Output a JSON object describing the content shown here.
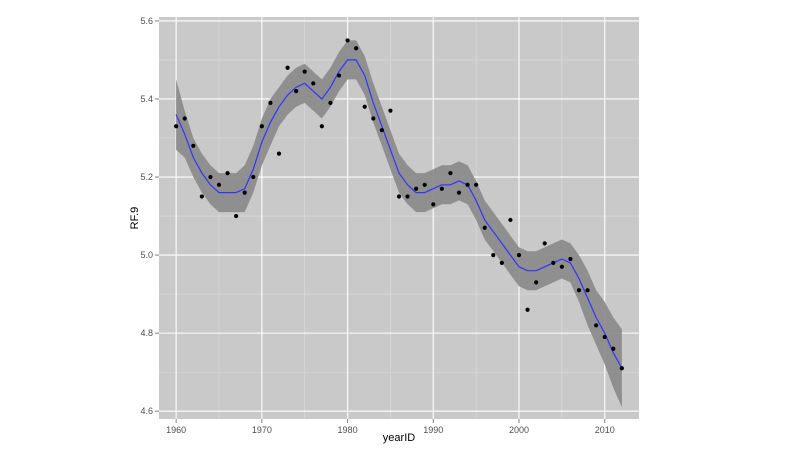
{
  "chart_data": {
    "type": "scatter",
    "title": "",
    "xlabel": "yearID",
    "ylabel": "RF.9",
    "xlim": [
      1958,
      2014
    ],
    "ylim": [
      4.58,
      5.61
    ],
    "xticks": [
      1960,
      1970,
      1980,
      1990,
      2000,
      2010
    ],
    "yticks": [
      4.6,
      4.8,
      5.0,
      5.2,
      5.4,
      5.6
    ],
    "xtick_labels": [
      "1960",
      "1970",
      "1980",
      "1990",
      "2000",
      "2010"
    ],
    "ytick_labels": [
      "4.6",
      "4.8",
      "5.0",
      "5.2",
      "5.4",
      "5.6"
    ],
    "grid": true,
    "colors": {
      "panel": "#c9c9c9",
      "grid_major": "#ffffff",
      "grid_minor": "#dcdcdc",
      "points": "#000000",
      "smooth_line": "#3333ff",
      "ribbon": "#8c8c8c"
    },
    "points": {
      "x": [
        1960,
        1961,
        1962,
        1963,
        1964,
        1965,
        1966,
        1967,
        1968,
        1969,
        1970,
        1971,
        1972,
        1973,
        1974,
        1975,
        1976,
        1977,
        1978,
        1979,
        1980,
        1981,
        1982,
        1983,
        1984,
        1985,
        1986,
        1987,
        1988,
        1989,
        1990,
        1991,
        1992,
        1993,
        1994,
        1995,
        1996,
        1997,
        1998,
        1999,
        2000,
        2001,
        2002,
        2003,
        2004,
        2005,
        2006,
        2007,
        2008,
        2009,
        2010,
        2011,
        2012
      ],
      "y": [
        5.33,
        5.35,
        5.28,
        5.15,
        5.2,
        5.18,
        5.21,
        5.1,
        5.16,
        5.2,
        5.33,
        5.39,
        5.26,
        5.48,
        5.42,
        5.47,
        5.44,
        5.33,
        5.39,
        5.46,
        5.55,
        5.53,
        5.38,
        5.35,
        5.32,
        5.37,
        5.15,
        5.15,
        5.17,
        5.18,
        5.13,
        5.17,
        5.21,
        5.16,
        5.18,
        5.18,
        5.07,
        5.0,
        4.98,
        5.09,
        5.0,
        4.86,
        4.93,
        5.03,
        4.98,
        4.97,
        4.99,
        4.91,
        4.91,
        4.82,
        4.79,
        4.76,
        4.71
      ]
    },
    "smooth": {
      "x": [
        1960,
        1961,
        1962,
        1963,
        1964,
        1965,
        1966,
        1967,
        1968,
        1969,
        1970,
        1971,
        1972,
        1973,
        1974,
        1975,
        1976,
        1977,
        1978,
        1979,
        1980,
        1981,
        1982,
        1983,
        1984,
        1985,
        1986,
        1987,
        1988,
        1989,
        1990,
        1991,
        1992,
        1993,
        1994,
        1995,
        1996,
        1997,
        1998,
        1999,
        2000,
        2001,
        2002,
        2003,
        2004,
        2005,
        2006,
        2007,
        2008,
        2009,
        2010,
        2011,
        2012
      ],
      "y": [
        5.36,
        5.31,
        5.25,
        5.21,
        5.18,
        5.16,
        5.16,
        5.16,
        5.17,
        5.22,
        5.29,
        5.34,
        5.38,
        5.41,
        5.43,
        5.44,
        5.42,
        5.4,
        5.43,
        5.47,
        5.5,
        5.5,
        5.46,
        5.39,
        5.33,
        5.27,
        5.21,
        5.18,
        5.16,
        5.16,
        5.17,
        5.18,
        5.18,
        5.19,
        5.18,
        5.14,
        5.09,
        5.06,
        5.03,
        5.0,
        4.97,
        4.96,
        4.96,
        4.97,
        4.98,
        4.99,
        4.98,
        4.94,
        4.89,
        4.84,
        4.8,
        4.75,
        4.71
      ],
      "lower": [
        5.27,
        5.25,
        5.2,
        5.16,
        5.13,
        5.11,
        5.11,
        5.11,
        5.11,
        5.16,
        5.23,
        5.28,
        5.33,
        5.36,
        5.38,
        5.39,
        5.37,
        5.35,
        5.38,
        5.42,
        5.45,
        5.45,
        5.41,
        5.34,
        5.28,
        5.22,
        5.16,
        5.13,
        5.11,
        5.11,
        5.12,
        5.13,
        5.13,
        5.14,
        5.13,
        5.09,
        5.04,
        5.01,
        4.98,
        4.95,
        4.92,
        4.91,
        4.91,
        4.92,
        4.93,
        4.94,
        4.93,
        4.88,
        4.82,
        4.77,
        4.72,
        4.66,
        4.61
      ],
      "upper": [
        5.45,
        5.37,
        5.3,
        5.26,
        5.23,
        5.21,
        5.21,
        5.21,
        5.23,
        5.28,
        5.35,
        5.4,
        5.43,
        5.46,
        5.48,
        5.49,
        5.47,
        5.45,
        5.48,
        5.52,
        5.55,
        5.55,
        5.51,
        5.44,
        5.38,
        5.32,
        5.26,
        5.23,
        5.21,
        5.21,
        5.22,
        5.23,
        5.23,
        5.24,
        5.23,
        5.19,
        5.14,
        5.11,
        5.08,
        5.05,
        5.02,
        5.01,
        5.01,
        5.02,
        5.03,
        5.04,
        5.03,
        5.0,
        4.96,
        4.91,
        4.88,
        4.84,
        4.81
      ]
    }
  }
}
